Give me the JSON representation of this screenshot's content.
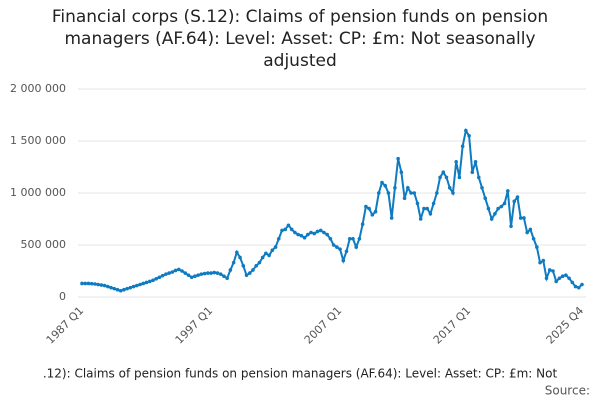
{
  "chart_data": {
    "type": "line",
    "title": "Financial corps (S.12): Claims of pension funds on pension managers (AF.64): Level: Asset: CP: £m: Not seasonally adjusted",
    "footer": ".12): Claims of pension funds on pension managers (AF.64): Level: Asset: CP: £m: Not",
    "source": "Source:",
    "categories": [
      "1987 Q1",
      null,
      null,
      null,
      null,
      null,
      null,
      null,
      null,
      null,
      null,
      null,
      null,
      null,
      null,
      null,
      null,
      null,
      null,
      null,
      null,
      null,
      null,
      null,
      null,
      null,
      null,
      null,
      null,
      null,
      null,
      null,
      null,
      null,
      null,
      null,
      null,
      null,
      null,
      null,
      "1997 Q1",
      null,
      null,
      null,
      null,
      null,
      null,
      null,
      null,
      null,
      null,
      null,
      null,
      null,
      null,
      null,
      null,
      null,
      null,
      null,
      null,
      null,
      null,
      null,
      null,
      null,
      null,
      null,
      null,
      null,
      null,
      null,
      null,
      null,
      null,
      null,
      null,
      null,
      null,
      null,
      "2007 Q1",
      null,
      null,
      null,
      null,
      null,
      null,
      null,
      null,
      null,
      null,
      null,
      null,
      null,
      null,
      null,
      null,
      null,
      null,
      null,
      null,
      null,
      null,
      null,
      null,
      null,
      null,
      null,
      null,
      null,
      null,
      null,
      null,
      null,
      null,
      null,
      null,
      null,
      null,
      null,
      "2017 Q1",
      null,
      null,
      null,
      null,
      null,
      null,
      null,
      null,
      null,
      null,
      null,
      null,
      null,
      null,
      null,
      null,
      null,
      null,
      null,
      null,
      null,
      null,
      null,
      null,
      null,
      null,
      null,
      null,
      null,
      null,
      null,
      null,
      null,
      null,
      "2025 Q4"
    ],
    "values": [
      130000,
      130000,
      130000,
      128000,
      125000,
      120000,
      115000,
      110000,
      100000,
      90000,
      80000,
      70000,
      60000,
      70000,
      80000,
      90000,
      100000,
      110000,
      120000,
      130000,
      140000,
      150000,
      160000,
      175000,
      190000,
      205000,
      220000,
      230000,
      240000,
      255000,
      265000,
      250000,
      230000,
      210000,
      190000,
      200000,
      210000,
      220000,
      225000,
      230000,
      230000,
      235000,
      230000,
      220000,
      200000,
      180000,
      260000,
      330000,
      430000,
      380000,
      300000,
      210000,
      230000,
      260000,
      300000,
      330000,
      380000,
      420000,
      400000,
      450000,
      480000,
      560000,
      640000,
      650000,
      690000,
      650000,
      620000,
      600000,
      590000,
      570000,
      600000,
      620000,
      610000,
      630000,
      640000,
      620000,
      600000,
      560000,
      500000,
      480000,
      460000,
      350000,
      440000,
      560000,
      560000,
      480000,
      560000,
      700000,
      870000,
      850000,
      790000,
      820000,
      1000000,
      1100000,
      1070000,
      1000000,
      760000,
      1050000,
      1330000,
      1200000,
      950000,
      1050000,
      1000000,
      1000000,
      900000,
      750000,
      850000,
      850000,
      800000,
      900000,
      1000000,
      1150000,
      1200000,
      1150000,
      1050000,
      1000000,
      1300000,
      1150000,
      1450000,
      1600000,
      1550000,
      1200000,
      1300000,
      1150000,
      1050000,
      950000,
      850000,
      750000,
      800000,
      850000,
      870000,
      900000,
      1020000,
      680000,
      920000,
      960000,
      760000,
      760000,
      620000,
      650000,
      560000,
      480000,
      330000,
      350000,
      180000,
      260000,
      250000,
      150000,
      180000,
      200000,
      210000,
      180000,
      140000,
      100000,
      90000,
      120000
    ],
    "color": "#0f7bc1",
    "ylim": [
      0,
      2000000
    ],
    "yticks": [
      0,
      {
        "value": 500000,
        "label": "500 000"
      },
      {
        "value": 1000000,
        "label": "1 000 000"
      },
      {
        "value": 1500000,
        "label": "1 500 000"
      },
      {
        "value": 2000000,
        "label": "2 000 000"
      }
    ],
    "grid": true
  }
}
